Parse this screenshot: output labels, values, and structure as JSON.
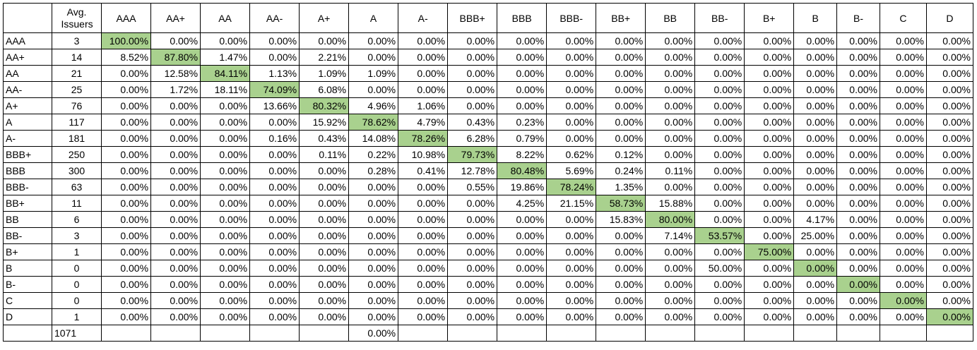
{
  "header": {
    "corner": "",
    "avg_issuers": "Avg. Issuers",
    "columns": [
      "AAA",
      "AA+",
      "AA",
      "AA-",
      "A+",
      "A",
      "A-",
      "BBB+",
      "BBB",
      "BBB-",
      "BB+",
      "BB",
      "BB-",
      "B+",
      "B",
      "B-",
      "C",
      "D"
    ]
  },
  "highlight_color": "#a9d18e",
  "rows": [
    {
      "label": "AAA",
      "issuers": "3",
      "values": [
        "100.00%",
        "0.00%",
        "0.00%",
        "0.00%",
        "0.00%",
        "0.00%",
        "0.00%",
        "0.00%",
        "0.00%",
        "0.00%",
        "0.00%",
        "0.00%",
        "0.00%",
        "0.00%",
        "0.00%",
        "0.00%",
        "0.00%",
        "0.00%"
      ]
    },
    {
      "label": "AA+",
      "issuers": "14",
      "values": [
        "8.52%",
        "87.80%",
        "1.47%",
        "0.00%",
        "2.21%",
        "0.00%",
        "0.00%",
        "0.00%",
        "0.00%",
        "0.00%",
        "0.00%",
        "0.00%",
        "0.00%",
        "0.00%",
        "0.00%",
        "0.00%",
        "0.00%",
        "0.00%"
      ]
    },
    {
      "label": "AA",
      "issuers": "21",
      "values": [
        "0.00%",
        "12.58%",
        "84.11%",
        "1.13%",
        "1.09%",
        "1.09%",
        "0.00%",
        "0.00%",
        "0.00%",
        "0.00%",
        "0.00%",
        "0.00%",
        "0.00%",
        "0.00%",
        "0.00%",
        "0.00%",
        "0.00%",
        "0.00%"
      ]
    },
    {
      "label": "AA-",
      "issuers": "25",
      "values": [
        "0.00%",
        "1.72%",
        "18.11%",
        "74.09%",
        "6.08%",
        "0.00%",
        "0.00%",
        "0.00%",
        "0.00%",
        "0.00%",
        "0.00%",
        "0.00%",
        "0.00%",
        "0.00%",
        "0.00%",
        "0.00%",
        "0.00%",
        "0.00%"
      ]
    },
    {
      "label": "A+",
      "issuers": "76",
      "values": [
        "0.00%",
        "0.00%",
        "0.00%",
        "13.66%",
        "80.32%",
        "4.96%",
        "1.06%",
        "0.00%",
        "0.00%",
        "0.00%",
        "0.00%",
        "0.00%",
        "0.00%",
        "0.00%",
        "0.00%",
        "0.00%",
        "0.00%",
        "0.00%"
      ]
    },
    {
      "label": "A",
      "issuers": "117",
      "values": [
        "0.00%",
        "0.00%",
        "0.00%",
        "0.00%",
        "15.92%",
        "78.62%",
        "4.79%",
        "0.43%",
        "0.23%",
        "0.00%",
        "0.00%",
        "0.00%",
        "0.00%",
        "0.00%",
        "0.00%",
        "0.00%",
        "0.00%",
        "0.00%"
      ]
    },
    {
      "label": "A-",
      "issuers": "181",
      "values": [
        "0.00%",
        "0.00%",
        "0.00%",
        "0.16%",
        "0.43%",
        "14.08%",
        "78.26%",
        "6.28%",
        "0.79%",
        "0.00%",
        "0.00%",
        "0.00%",
        "0.00%",
        "0.00%",
        "0.00%",
        "0.00%",
        "0.00%",
        "0.00%"
      ]
    },
    {
      "label": "BBB+",
      "issuers": "250",
      "values": [
        "0.00%",
        "0.00%",
        "0.00%",
        "0.00%",
        "0.11%",
        "0.22%",
        "10.98%",
        "79.73%",
        "8.22%",
        "0.62%",
        "0.12%",
        "0.00%",
        "0.00%",
        "0.00%",
        "0.00%",
        "0.00%",
        "0.00%",
        "0.00%"
      ]
    },
    {
      "label": "BBB",
      "issuers": "300",
      "values": [
        "0.00%",
        "0.00%",
        "0.00%",
        "0.00%",
        "0.00%",
        "0.28%",
        "0.41%",
        "12.78%",
        "80.48%",
        "5.69%",
        "0.24%",
        "0.11%",
        "0.00%",
        "0.00%",
        "0.00%",
        "0.00%",
        "0.00%",
        "0.00%"
      ]
    },
    {
      "label": "BBB-",
      "issuers": "63",
      "values": [
        "0.00%",
        "0.00%",
        "0.00%",
        "0.00%",
        "0.00%",
        "0.00%",
        "0.00%",
        "0.55%",
        "19.86%",
        "78.24%",
        "1.35%",
        "0.00%",
        "0.00%",
        "0.00%",
        "0.00%",
        "0.00%",
        "0.00%",
        "0.00%"
      ]
    },
    {
      "label": "BB+",
      "issuers": "11",
      "values": [
        "0.00%",
        "0.00%",
        "0.00%",
        "0.00%",
        "0.00%",
        "0.00%",
        "0.00%",
        "0.00%",
        "4.25%",
        "21.15%",
        "58.73%",
        "15.88%",
        "0.00%",
        "0.00%",
        "0.00%",
        "0.00%",
        "0.00%",
        "0.00%"
      ]
    },
    {
      "label": "BB",
      "issuers": "6",
      "values": [
        "0.00%",
        "0.00%",
        "0.00%",
        "0.00%",
        "0.00%",
        "0.00%",
        "0.00%",
        "0.00%",
        "0.00%",
        "0.00%",
        "15.83%",
        "80.00%",
        "0.00%",
        "0.00%",
        "4.17%",
        "0.00%",
        "0.00%",
        "0.00%"
      ]
    },
    {
      "label": "BB-",
      "issuers": "3",
      "values": [
        "0.00%",
        "0.00%",
        "0.00%",
        "0.00%",
        "0.00%",
        "0.00%",
        "0.00%",
        "0.00%",
        "0.00%",
        "0.00%",
        "0.00%",
        "7.14%",
        "53.57%",
        "0.00%",
        "25.00%",
        "0.00%",
        "0.00%",
        "0.00%"
      ]
    },
    {
      "label": "B+",
      "issuers": "1",
      "values": [
        "0.00%",
        "0.00%",
        "0.00%",
        "0.00%",
        "0.00%",
        "0.00%",
        "0.00%",
        "0.00%",
        "0.00%",
        "0.00%",
        "0.00%",
        "0.00%",
        "0.00%",
        "75.00%",
        "0.00%",
        "0.00%",
        "0.00%",
        "0.00%"
      ]
    },
    {
      "label": "B",
      "issuers": "0",
      "values": [
        "0.00%",
        "0.00%",
        "0.00%",
        "0.00%",
        "0.00%",
        "0.00%",
        "0.00%",
        "0.00%",
        "0.00%",
        "0.00%",
        "0.00%",
        "0.00%",
        "50.00%",
        "0.00%",
        "0.00%",
        "0.00%",
        "0.00%",
        "0.00%"
      ]
    },
    {
      "label": "B-",
      "issuers": "0",
      "values": [
        "0.00%",
        "0.00%",
        "0.00%",
        "0.00%",
        "0.00%",
        "0.00%",
        "0.00%",
        "0.00%",
        "0.00%",
        "0.00%",
        "0.00%",
        "0.00%",
        "0.00%",
        "0.00%",
        "0.00%",
        "0.00%",
        "0.00%",
        "0.00%"
      ]
    },
    {
      "label": "C",
      "issuers": "0",
      "values": [
        "0.00%",
        "0.00%",
        "0.00%",
        "0.00%",
        "0.00%",
        "0.00%",
        "0.00%",
        "0.00%",
        "0.00%",
        "0.00%",
        "0.00%",
        "0.00%",
        "0.00%",
        "0.00%",
        "0.00%",
        "0.00%",
        "0.00%",
        "0.00%"
      ]
    },
    {
      "label": "D",
      "issuers": "1",
      "values": [
        "0.00%",
        "0.00%",
        "0.00%",
        "0.00%",
        "0.00%",
        "0.00%",
        "0.00%",
        "0.00%",
        "0.00%",
        "0.00%",
        "0.00%",
        "0.00%",
        "0.00%",
        "0.00%",
        "0.00%",
        "0.00%",
        "0.00%",
        "0.00%"
      ]
    }
  ],
  "footer": {
    "total_issuers": "1071",
    "values": [
      "",
      "",
      "",
      "",
      "",
      "0.00%",
      "",
      "",
      "",
      "",
      "",
      "",
      "",
      "",
      "",
      "",
      "",
      ""
    ]
  }
}
